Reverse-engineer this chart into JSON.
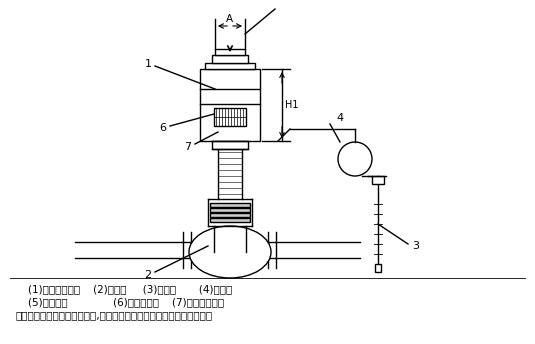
{
  "bg_color": "#ffffff",
  "line_color": "#000000",
  "label_line1": "    (1)智能型執行器    (2)主閥體     (3)傳感器       (4)毛細管",
  "label_line2": "    (5)手動機構              (6)溫度顯示器    (7)溫度設定開關",
  "label_line3": "備注：常說的加熱型、冷卻型,在此閥中只要更換閥芯結構即可以實現。",
  "dim_A": "A",
  "dim_H1": "H1"
}
